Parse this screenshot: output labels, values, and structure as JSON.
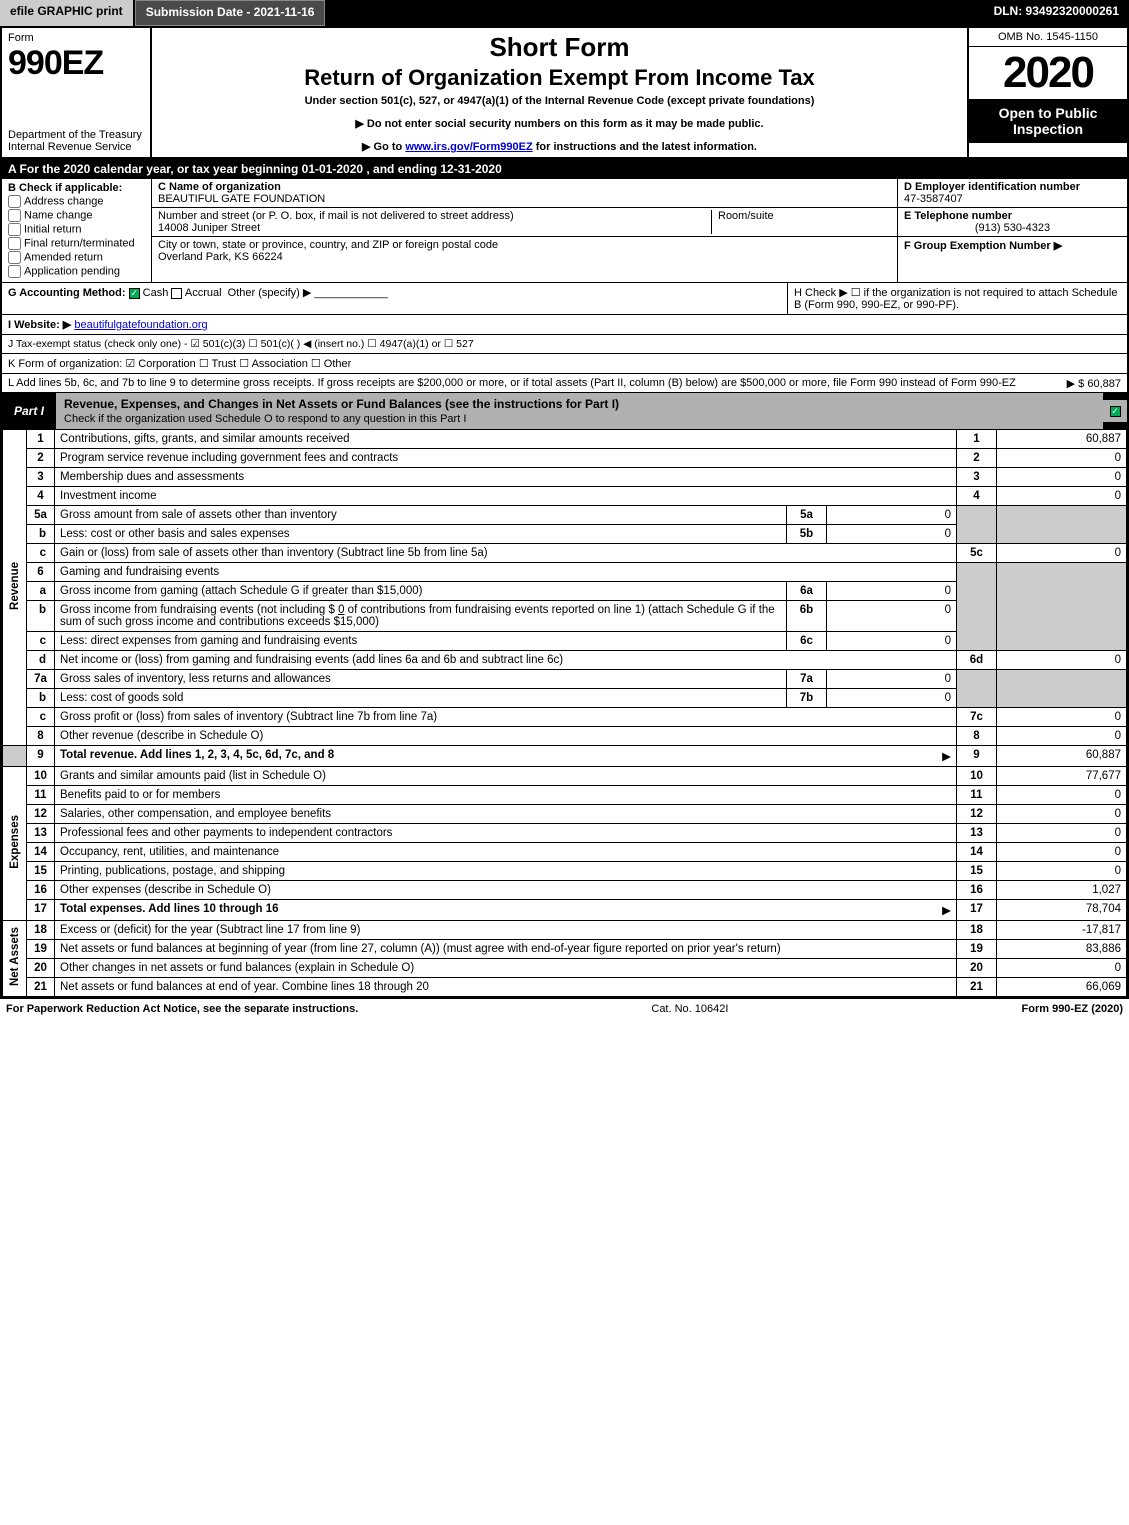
{
  "meta": {
    "efile_btn": "efile GRAPHIC print",
    "submission_label": "Submission Date - 2021-11-16",
    "dln": "DLN: 93492320000261",
    "omb": "OMB No. 1545-1150",
    "year": "2020",
    "open_to": "Open to Public Inspection",
    "form_word": "Form",
    "form_no": "990EZ",
    "dept": "Department of the Treasury Internal Revenue Service",
    "short_form": "Short Form",
    "return_title": "Return of Organization Exempt From Income Tax",
    "under": "Under section 501(c), 527, or 4947(a)(1) of the Internal Revenue Code (except private foundations)",
    "note1": "▶ Do not enter social security numbers on this form as it may be made public.",
    "note2_pre": "▶ Go to ",
    "note2_link": "www.irs.gov/Form990EZ",
    "note2_post": " for instructions and the latest information."
  },
  "row_a": "A For the 2020 calendar year, or tax year beginning 01-01-2020 , and ending 12-31-2020",
  "section_b": {
    "label": "B Check if applicable:",
    "opts": [
      "Address change",
      "Name change",
      "Initial return",
      "Final return/terminated",
      "Amended return",
      "Application pending"
    ]
  },
  "section_c": {
    "name_label": "C Name of organization",
    "name": "BEAUTIFUL GATE FOUNDATION",
    "addr_label": "Number and street (or P. O. box, if mail is not delivered to street address)",
    "addr": "14008 Juniper Street",
    "room_label": "Room/suite",
    "city_label": "City or town, state or province, country, and ZIP or foreign postal code",
    "city": "Overland Park, KS  66224"
  },
  "section_d": {
    "ein_label": "D Employer identification number",
    "ein": "47-3587407",
    "tel_label": "E Telephone number",
    "tel": "(913) 530-4323",
    "grp_label": "F Group Exemption Number ▶"
  },
  "row_g": {
    "label": "G Accounting Method:",
    "cash": "Cash",
    "accrual": "Accrual",
    "other": "Other (specify) ▶",
    "h_text": "H Check ▶ ☐ if the organization is not required to attach Schedule B (Form 990, 990-EZ, or 990-PF)."
  },
  "row_i": {
    "label": "I Website: ▶",
    "val": "beautifulgatefoundation.org"
  },
  "row_j": "J Tax-exempt status (check only one) - ☑ 501(c)(3) ☐ 501(c)( ) ◀ (insert no.) ☐ 4947(a)(1) or ☐ 527",
  "row_k": "K Form of organization: ☑ Corporation  ☐ Trust  ☐ Association  ☐ Other",
  "row_l": {
    "text": "L Add lines 5b, 6c, and 7b to line 9 to determine gross receipts. If gross receipts are $200,000 or more, or if total assets (Part II, column (B) below) are $500,000 or more, file Form 990 instead of Form 990-EZ",
    "amount": "▶ $ 60,887"
  },
  "part1": {
    "tab": "Part I",
    "title": "Revenue, Expenses, and Changes in Net Assets or Fund Balances (see the instructions for Part I)",
    "subtitle": "Check if the organization used Schedule O to respond to any question in this Part I"
  },
  "sides": {
    "revenue": "Revenue",
    "expenses": "Expenses",
    "netassets": "Net Assets"
  },
  "lines": {
    "l1": {
      "n": "1",
      "t": "Contributions, gifts, grants, and similar amounts received",
      "ln": "1",
      "amt": "60,887"
    },
    "l2": {
      "n": "2",
      "t": "Program service revenue including government fees and contracts",
      "ln": "2",
      "amt": "0"
    },
    "l3": {
      "n": "3",
      "t": "Membership dues and assessments",
      "ln": "3",
      "amt": "0"
    },
    "l4": {
      "n": "4",
      "t": "Investment income",
      "ln": "4",
      "amt": "0"
    },
    "l5a": {
      "n": "5a",
      "t": "Gross amount from sale of assets other than inventory",
      "box": "5a",
      "val": "0"
    },
    "l5b": {
      "n": "b",
      "t": "Less: cost or other basis and sales expenses",
      "box": "5b",
      "val": "0"
    },
    "l5c": {
      "n": "c",
      "t": "Gain or (loss) from sale of assets other than inventory (Subtract line 5b from line 5a)",
      "ln": "5c",
      "amt": "0"
    },
    "l6": {
      "n": "6",
      "t": "Gaming and fundraising events"
    },
    "l6a": {
      "n": "a",
      "t": "Gross income from gaming (attach Schedule G if greater than $15,000)",
      "box": "6a",
      "val": "0"
    },
    "l6b": {
      "n": "b",
      "t1": "Gross income from fundraising events (not including $",
      "t1v": "0",
      "t2": "of contributions from fundraising events reported on line 1) (attach Schedule G if the sum of such gross income and contributions exceeds $15,000)",
      "box": "6b",
      "val": "0"
    },
    "l6c": {
      "n": "c",
      "t": "Less: direct expenses from gaming and fundraising events",
      "box": "6c",
      "val": "0"
    },
    "l6d": {
      "n": "d",
      "t": "Net income or (loss) from gaming and fundraising events (add lines 6a and 6b and subtract line 6c)",
      "ln": "6d",
      "amt": "0"
    },
    "l7a": {
      "n": "7a",
      "t": "Gross sales of inventory, less returns and allowances",
      "box": "7a",
      "val": "0"
    },
    "l7b": {
      "n": "b",
      "t": "Less: cost of goods sold",
      "box": "7b",
      "val": "0"
    },
    "l7c": {
      "n": "c",
      "t": "Gross profit or (loss) from sales of inventory (Subtract line 7b from line 7a)",
      "ln": "7c",
      "amt": "0"
    },
    "l8": {
      "n": "8",
      "t": "Other revenue (describe in Schedule O)",
      "ln": "8",
      "amt": "0"
    },
    "l9": {
      "n": "9",
      "t": "Total revenue. Add lines 1, 2, 3, 4, 5c, 6d, 7c, and 8",
      "ln": "9",
      "amt": "60,887"
    },
    "l10": {
      "n": "10",
      "t": "Grants and similar amounts paid (list in Schedule O)",
      "ln": "10",
      "amt": "77,677"
    },
    "l11": {
      "n": "11",
      "t": "Benefits paid to or for members",
      "ln": "11",
      "amt": "0"
    },
    "l12": {
      "n": "12",
      "t": "Salaries, other compensation, and employee benefits",
      "ln": "12",
      "amt": "0"
    },
    "l13": {
      "n": "13",
      "t": "Professional fees and other payments to independent contractors",
      "ln": "13",
      "amt": "0"
    },
    "l14": {
      "n": "14",
      "t": "Occupancy, rent, utilities, and maintenance",
      "ln": "14",
      "amt": "0"
    },
    "l15": {
      "n": "15",
      "t": "Printing, publications, postage, and shipping",
      "ln": "15",
      "amt": "0"
    },
    "l16": {
      "n": "16",
      "t": "Other expenses (describe in Schedule O)",
      "ln": "16",
      "amt": "1,027"
    },
    "l17": {
      "n": "17",
      "t": "Total expenses. Add lines 10 through 16",
      "ln": "17",
      "amt": "78,704"
    },
    "l18": {
      "n": "18",
      "t": "Excess or (deficit) for the year (Subtract line 17 from line 9)",
      "ln": "18",
      "amt": "-17,817"
    },
    "l19": {
      "n": "19",
      "t": "Net assets or fund balances at beginning of year (from line 27, column (A)) (must agree with end-of-year figure reported on prior year's return)",
      "ln": "19",
      "amt": "83,886"
    },
    "l20": {
      "n": "20",
      "t": "Other changes in net assets or fund balances (explain in Schedule O)",
      "ln": "20",
      "amt": "0"
    },
    "l21": {
      "n": "21",
      "t": "Net assets or fund balances at end of year. Combine lines 18 through 20",
      "ln": "21",
      "amt": "66,069"
    }
  },
  "footer": {
    "left": "For Paperwork Reduction Act Notice, see the separate instructions.",
    "mid": "Cat. No. 10642I",
    "right": "Form 990-EZ (2020)"
  }
}
